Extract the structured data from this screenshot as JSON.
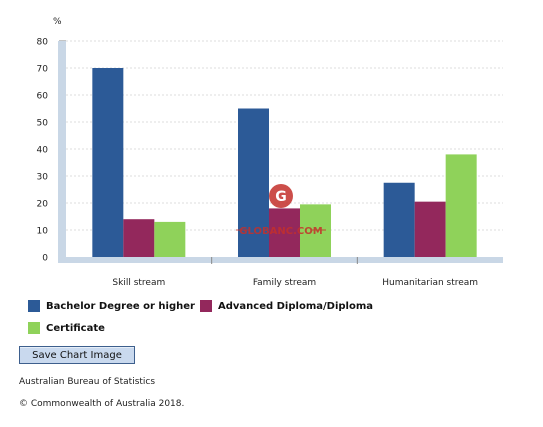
{
  "chart_data": {
    "type": "bar",
    "ylabel": "%",
    "ylim": [
      0,
      80
    ],
    "yticks": [
      "0",
      "10",
      "20",
      "30",
      "40",
      "50",
      "60",
      "70",
      "80"
    ],
    "categories": [
      "Skill stream",
      "Family stream",
      "Humanitarian stream"
    ],
    "series": [
      {
        "name": "Bachelor Degree or higher",
        "color": "#2c5a97",
        "values": [
          70,
          55,
          27.5
        ]
      },
      {
        "name": "Advanced Diploma/Diploma",
        "color": "#93285c",
        "values": [
          14,
          18,
          20.5
        ]
      },
      {
        "name": "Certificate",
        "color": "#8fd25a",
        "values": [
          13,
          19.5,
          38
        ]
      }
    ],
    "grid": true,
    "legend_position": "bottom"
  },
  "ui": {
    "save_button_label": "Save Chart Image",
    "source": "Australian Bureau of Statistics",
    "copyright": "© Commonwealth of Australia 2018."
  },
  "watermark": {
    "text": "GLOBANC.COM",
    "logo_letter": "G",
    "color": "#c4302b"
  }
}
